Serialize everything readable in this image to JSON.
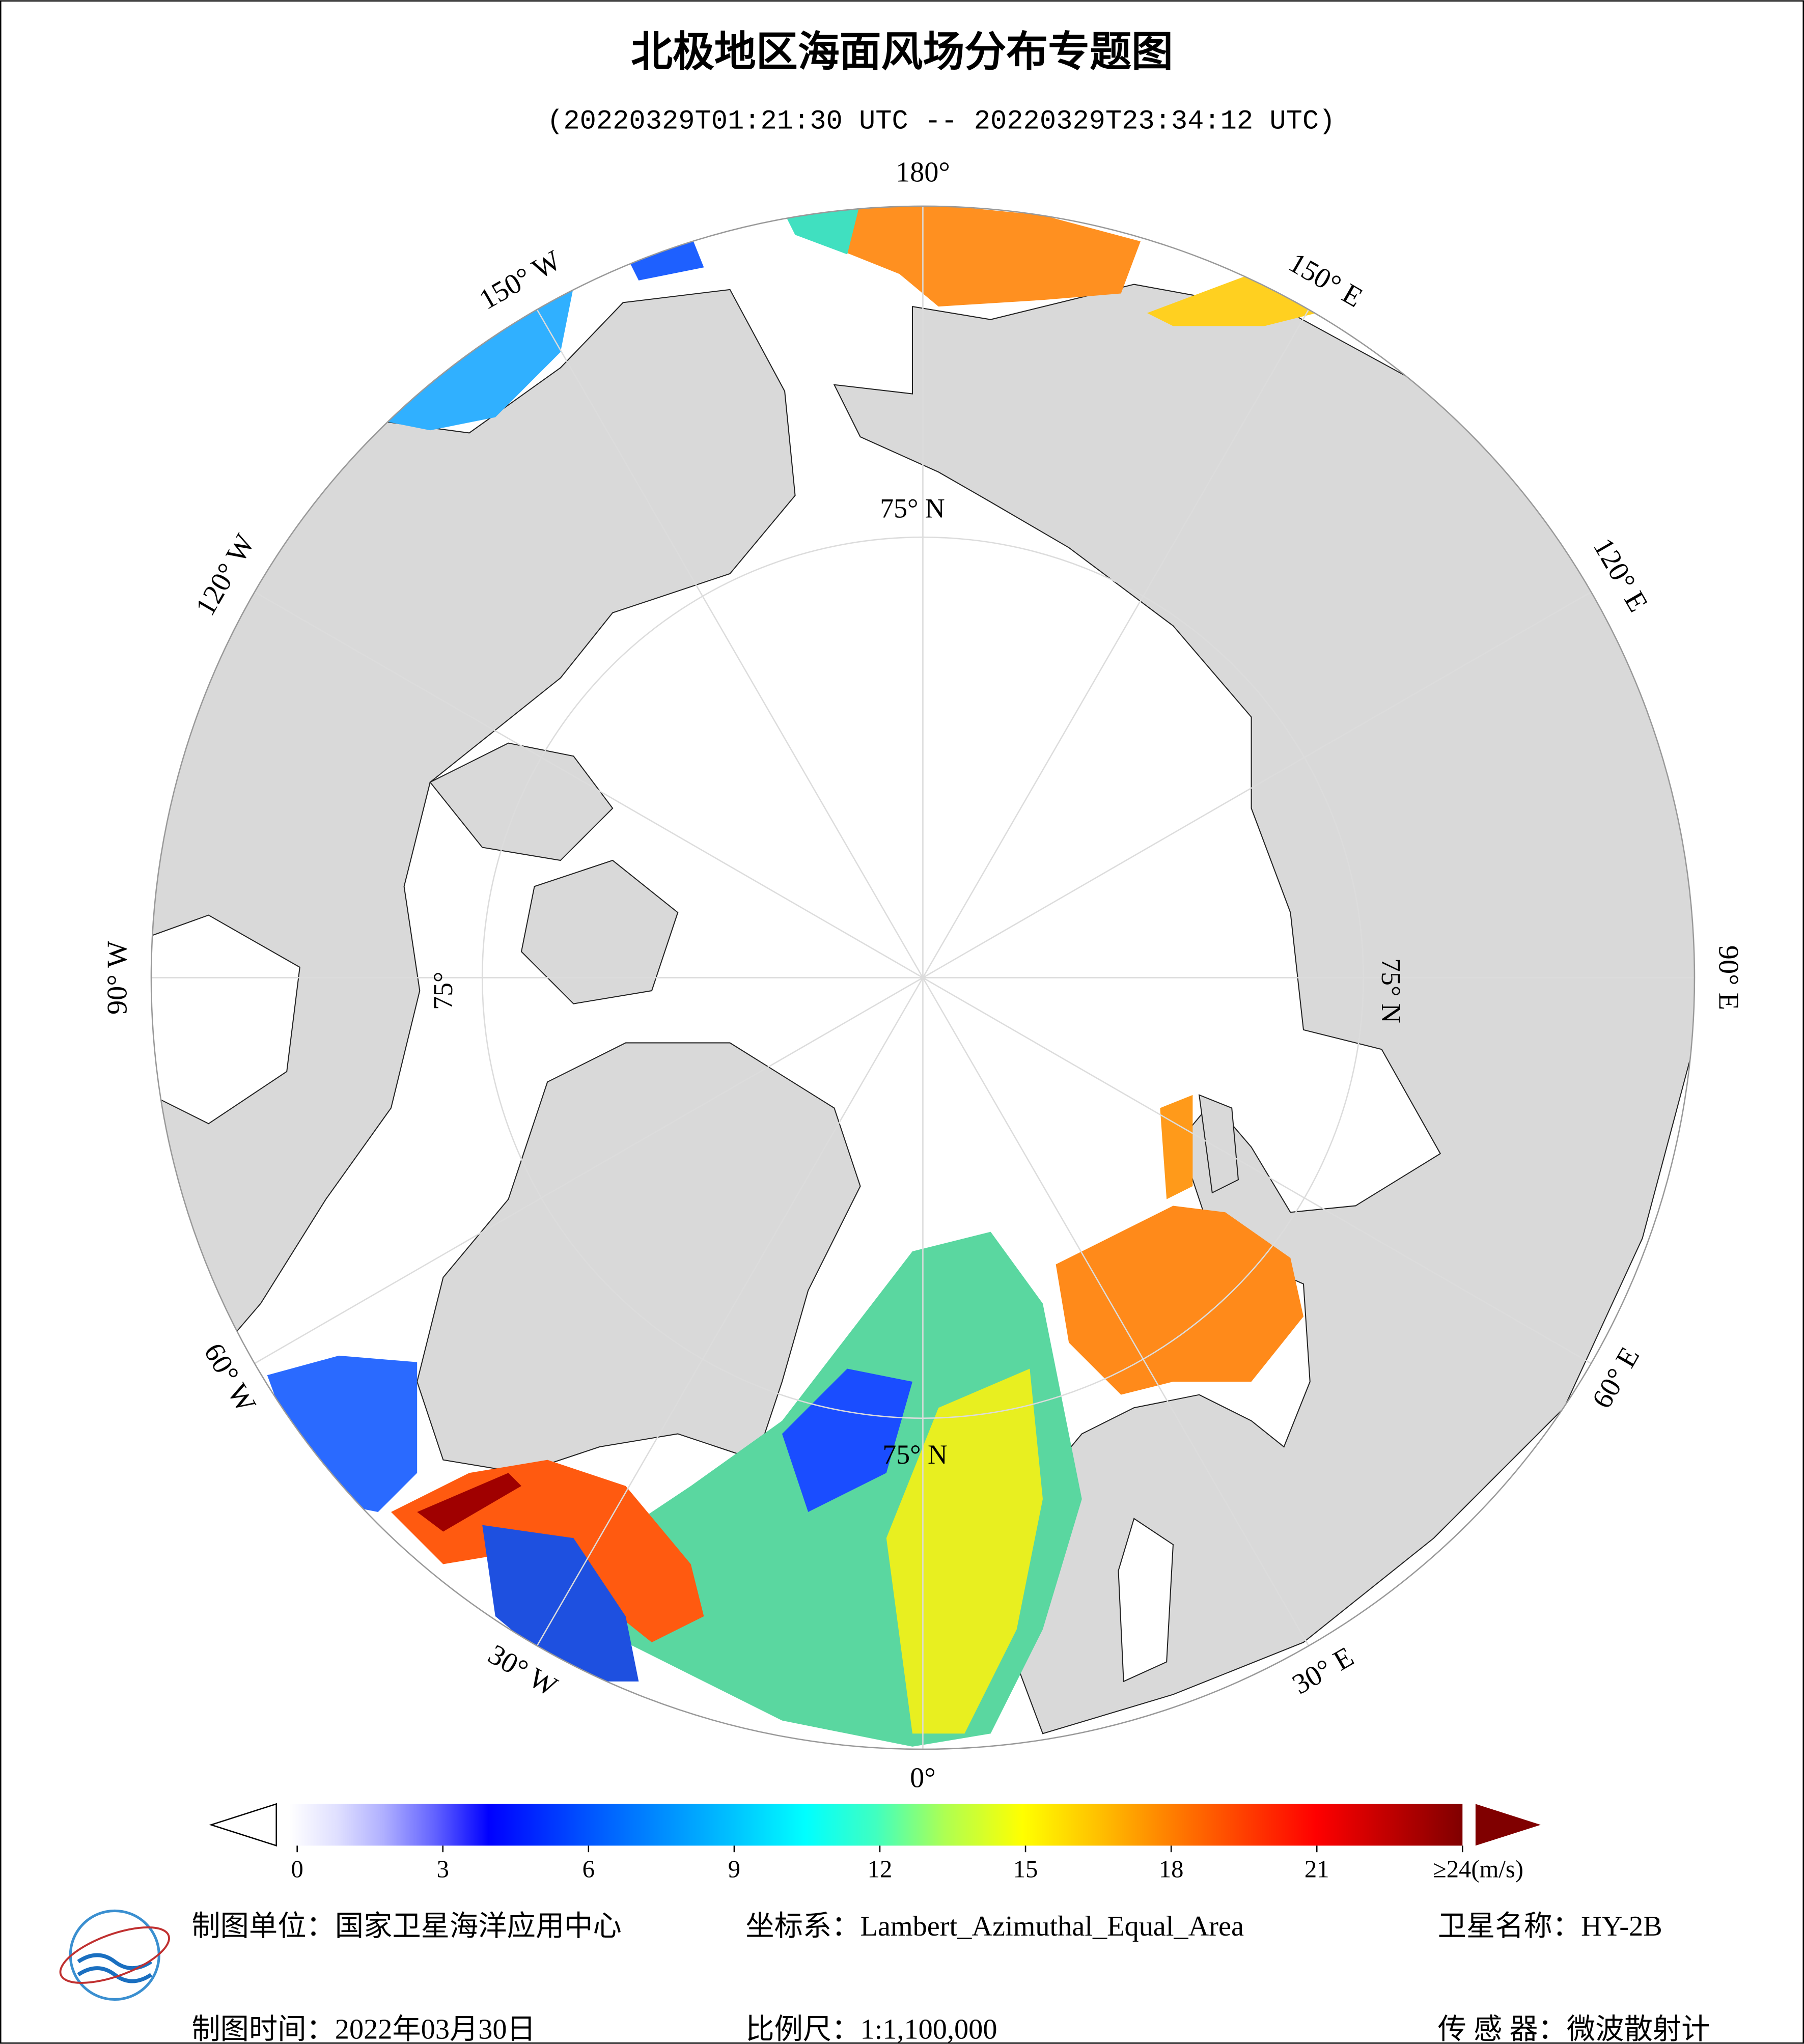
{
  "title": "北极地区海面风场分布专题图",
  "subtitle": "(20220329T01:21:30 UTC -- 20220329T23:34:12 UTC)",
  "lon_labels": [
    "180°",
    "150° E",
    "120° E",
    "90° E",
    "60° E",
    "30° E",
    "0°",
    "30° W",
    "60° W",
    "90° W",
    "120° W",
    "150° W"
  ],
  "lat_labels": [
    "75° N",
    "75° N",
    "75° N",
    "75°"
  ],
  "colorbar": {
    "range": [
      0,
      24
    ],
    "ticks": [
      0,
      3,
      6,
      9,
      12,
      15,
      18,
      21,
      {
        "value": 24,
        "label": "≥24(m/s)"
      }
    ]
  },
  "footer": [
    [
      "制图单位：国家卫星海洋应用中心",
      "坐标系：Lambert_Azimuthal_Equal_Area",
      "卫星名称：HY-2B"
    ],
    [
      "制图时间：2022年03月30日",
      "比例尺：1:1,100,000",
      "传 感 器：微波散射计"
    ]
  ]
}
